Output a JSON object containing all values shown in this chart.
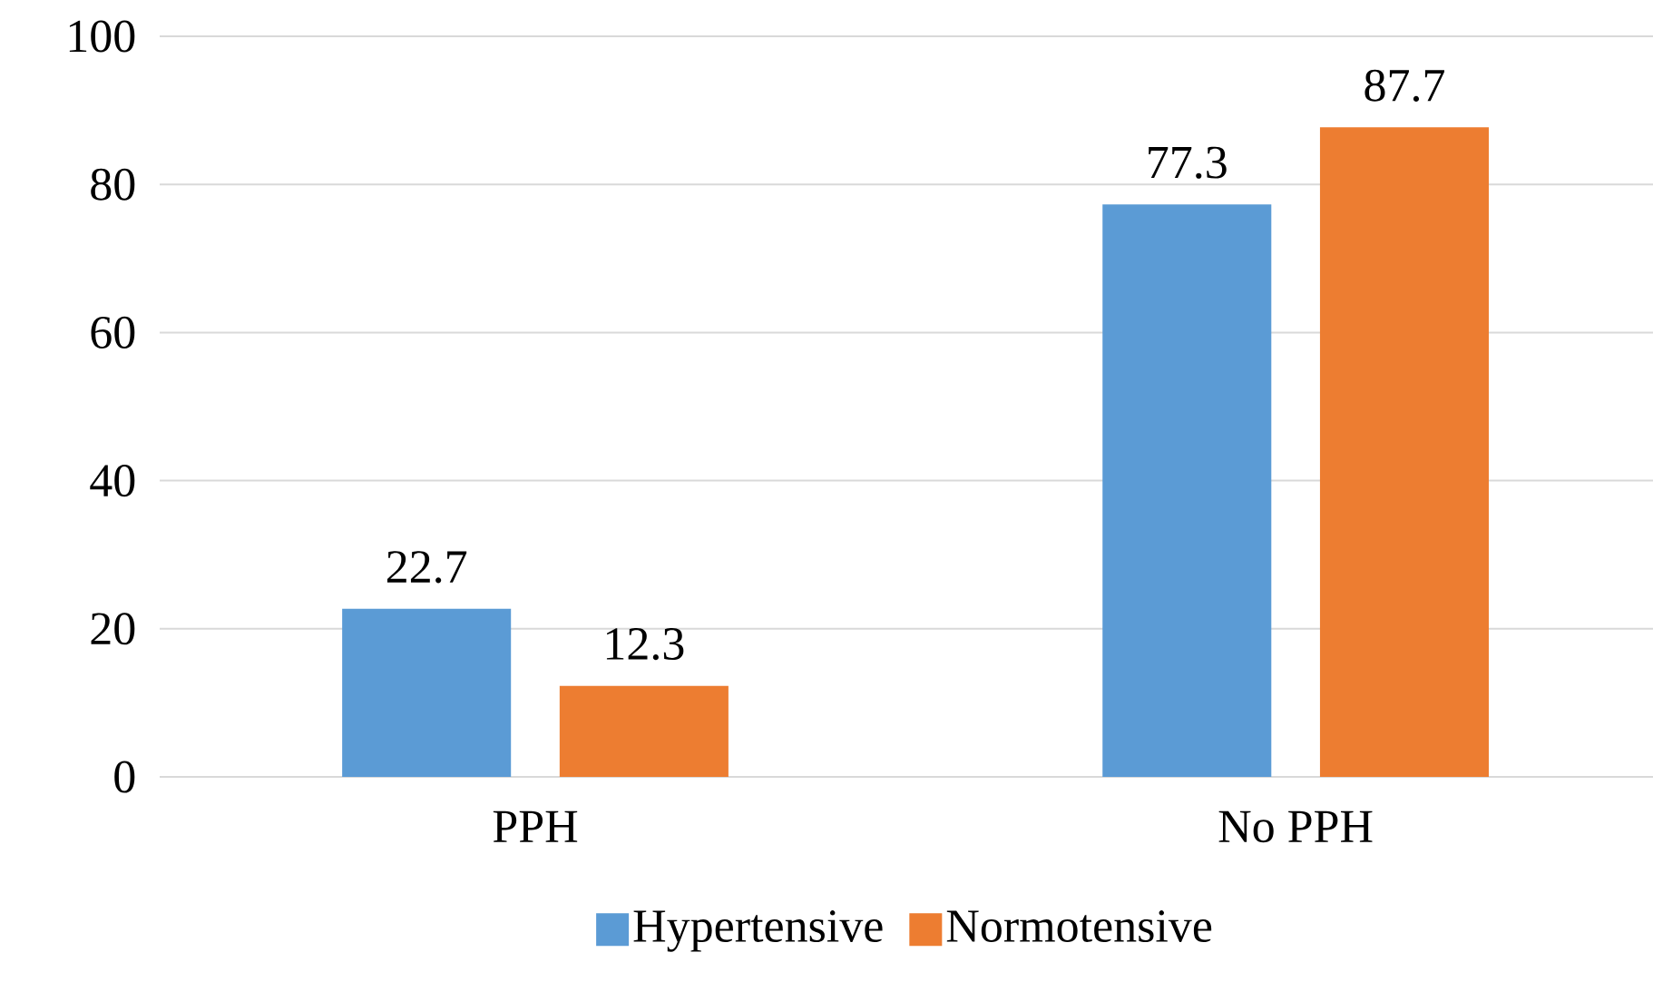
{
  "chart_data": {
    "type": "bar",
    "categories": [
      "PPH",
      "No PPH"
    ],
    "series": [
      {
        "name": "Hypertensive",
        "color": "#5b9bd5",
        "values": [
          22.7,
          77.3
        ]
      },
      {
        "name": "Normotensive",
        "color": "#ed7d31",
        "values": [
          12.3,
          87.7
        ]
      }
    ],
    "ylim": [
      0,
      100
    ],
    "yticks": [
      0,
      20,
      40,
      60,
      80,
      100
    ],
    "grid": "y",
    "legend": "bottom",
    "data_labels": true
  }
}
